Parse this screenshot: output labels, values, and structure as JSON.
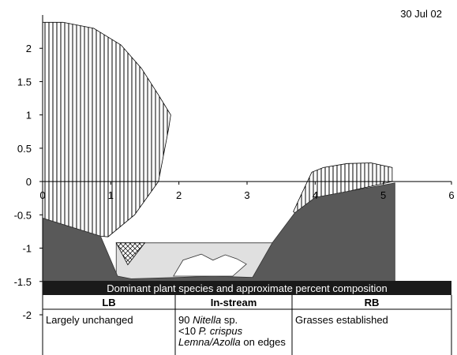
{
  "chart_data": {
    "type": "cross-section",
    "annotation": "30 Jul 02",
    "xlim": [
      0,
      6
    ],
    "xticks": [
      0,
      1,
      2,
      3,
      4,
      5,
      6
    ],
    "ylim": [
      -2,
      2.5
    ],
    "yticks": [
      -2,
      -1.5,
      -1,
      -0.5,
      0,
      0.5,
      1,
      1.5,
      2
    ],
    "regions": [
      {
        "fill": "vertical-hatch",
        "x": [
          0,
          0.3,
          0.75,
          1.15,
          1.45,
          1.7,
          1.88,
          1.85,
          1.7,
          1.35,
          0.96,
          0.85,
          0
        ],
        "y": [
          2.39,
          2.39,
          2.3,
          2.05,
          1.7,
          1.3,
          1.0,
          0.8,
          0,
          -0.5,
          -0.83,
          -0.82,
          -0.55
        ]
      },
      {
        "fill": "vertical-hatch",
        "x": [
          3.68,
          3.83,
          3.95,
          4.12,
          4.47,
          4.82,
          5.13,
          5.13,
          4.47,
          4.0,
          3.7
        ],
        "y": [
          -0.45,
          -0.12,
          0.14,
          0.21,
          0.27,
          0.28,
          0.21,
          0,
          -0.15,
          -0.24,
          -0.47
        ]
      },
      {
        "fill": "#e0e0e0",
        "x": [
          1.08,
          3.37,
          3.37,
          1.08
        ],
        "y": [
          -0.92,
          -0.92,
          -1.5,
          -1.5
        ]
      },
      {
        "fill": "#595959",
        "x": [
          0,
          0.85,
          1.1,
          1.3,
          2.0,
          2.5,
          3.08,
          3.37,
          3.7,
          4.0,
          4.47,
          5.17,
          5.17,
          0
        ],
        "y": [
          -0.55,
          -0.82,
          -1.42,
          -1.46,
          -1.44,
          -1.42,
          -1.44,
          -0.92,
          -0.47,
          -0.24,
          -0.15,
          -0.02,
          -1.5,
          -1.5
        ]
      },
      {
        "fill": "#ffffff",
        "x": [
          1.92,
          2.06,
          2.33,
          2.5,
          2.68,
          2.85,
          2.99,
          2.79
        ],
        "y": [
          -1.42,
          -1.18,
          -1.09,
          -1.18,
          -1.1,
          -1.16,
          -1.24,
          -1.42
        ]
      },
      {
        "fill": "cross-hatch",
        "x": [
          1.08,
          1.5,
          1.25
        ],
        "y": [
          -0.92,
          -0.92,
          -1.25
        ]
      }
    ]
  },
  "table": {
    "title": "Dominant plant species and approximate percent composition",
    "columns": [
      "LB",
      "In-stream",
      "RB"
    ],
    "cells": [
      [
        [
          {
            "text": "Largely unchanged",
            "italic": false
          }
        ]
      ],
      [
        [
          {
            "text": "90 ",
            "italic": false
          },
          {
            "text": "Nitella",
            "italic": true
          },
          {
            "text": " sp.",
            "italic": false
          }
        ],
        [
          {
            "text": "<10 ",
            "italic": false
          },
          {
            "text": "P. crispus",
            "italic": true
          }
        ],
        [
          {
            "text": "Lemna/Azolla",
            "italic": true
          },
          {
            "text": " on edges",
            "italic": false
          }
        ]
      ],
      [
        [
          {
            "text": "Grasses established",
            "italic": false
          }
        ]
      ]
    ]
  }
}
